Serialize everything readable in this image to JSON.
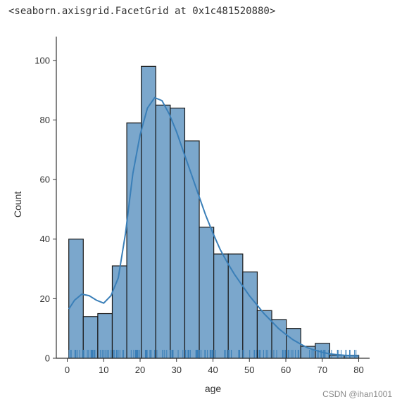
{
  "output_text": "<seaborn.axisgrid.FacetGrid at 0x1c481520880>",
  "watermark": "CSDN @ihan1001",
  "chart_data": {
    "type": "bar",
    "subtype": "histogram with kde and rug",
    "xlabel": "age",
    "ylabel": "Count",
    "xlim": [
      -3,
      83
    ],
    "ylim": [
      0,
      108
    ],
    "xticks": [
      0,
      10,
      20,
      30,
      40,
      50,
      60,
      70,
      80
    ],
    "yticks": [
      0,
      20,
      40,
      60,
      80,
      100
    ],
    "bin_edges": [
      0.42,
      4.4,
      8.38,
      12.36,
      16.34,
      20.32,
      24.3,
      28.28,
      32.26,
      36.24,
      40.22,
      44.2,
      48.18,
      52.16,
      56.14,
      60.12,
      64.1,
      68.08,
      72.06,
      76.04,
      80.02
    ],
    "values": [
      40,
      14,
      15,
      31,
      79,
      98,
      85,
      84,
      73,
      44,
      35,
      35,
      29,
      16,
      13,
      10,
      4,
      5,
      1,
      1
    ],
    "kde": {
      "x": [
        0.42,
        2,
        4,
        6,
        8,
        10,
        12,
        14,
        16,
        18,
        20,
        22,
        24,
        26,
        28,
        30,
        32,
        34,
        36,
        38,
        40,
        42,
        44,
        46,
        48,
        50,
        52,
        54,
        56,
        58,
        60,
        62,
        64,
        66,
        68,
        70,
        72,
        74,
        76,
        78,
        80.02
      ],
      "y": [
        16.5,
        19.5,
        21.5,
        21.0,
        19.5,
        18.5,
        21.0,
        27.0,
        42.0,
        62.0,
        75.0,
        84.0,
        87.5,
        86.5,
        82.0,
        76.0,
        69.0,
        62.0,
        55.0,
        48.0,
        42.0,
        36.5,
        32.0,
        28.0,
        24.5,
        21.0,
        18.0,
        15.0,
        12.5,
        10.0,
        8.0,
        6.2,
        4.8,
        3.5,
        2.7,
        2.0,
        1.5,
        1.2,
        1.0,
        0.9,
        0.8
      ]
    },
    "grid": false,
    "colors": {
      "bar_fill": "#7ba7cc",
      "bar_edge": "#1a1a1a",
      "kde_line": "#3a7fb8",
      "rug": "#3a7fb8",
      "axis": "#333333"
    }
  }
}
